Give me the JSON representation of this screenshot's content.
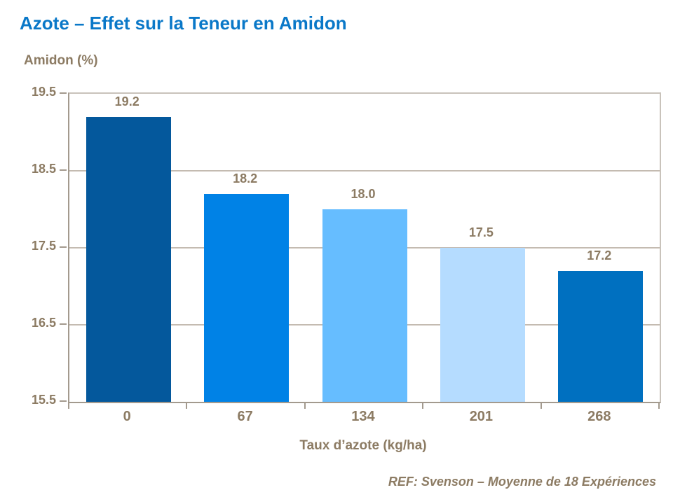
{
  "title": "Azote – Effet sur la Teneur en Amidon",
  "footer": {
    "reference": "REF: Svenson – Moyenne de 18 Expériences"
  },
  "colors": {
    "title": "#0A78C8",
    "text": "#8C7B63",
    "axis": "#A39A8E",
    "plot_border": "#C9C3BB",
    "gridline": "#C4BBB1",
    "bars": [
      "#04589C",
      "#0082E6",
      "#66BDFF",
      "#B5DCFF",
      "#0070C0"
    ]
  },
  "chart_data": {
    "type": "bar",
    "title": "Azote – Effet sur la Teneur en Amidon",
    "categories": [
      "0",
      "67",
      "134",
      "201",
      "268"
    ],
    "values": [
      19.2,
      18.2,
      18.0,
      17.5,
      17.2
    ],
    "value_labels": [
      "19.2",
      "18.2",
      "18.0",
      "17.5",
      "17.2"
    ],
    "xlabel": "Taux d’azote (kg/ha)",
    "ylabel": "Amidon (%)",
    "ylim": [
      15.5,
      19.5
    ],
    "ytick_interval": 1.0,
    "yticks": [
      "19.5",
      "18.5",
      "17.5",
      "16.5",
      "15.5"
    ],
    "grid": true,
    "legend": false,
    "annotation": "REF: Svenson – Moyenne de 18 Expériences"
  }
}
